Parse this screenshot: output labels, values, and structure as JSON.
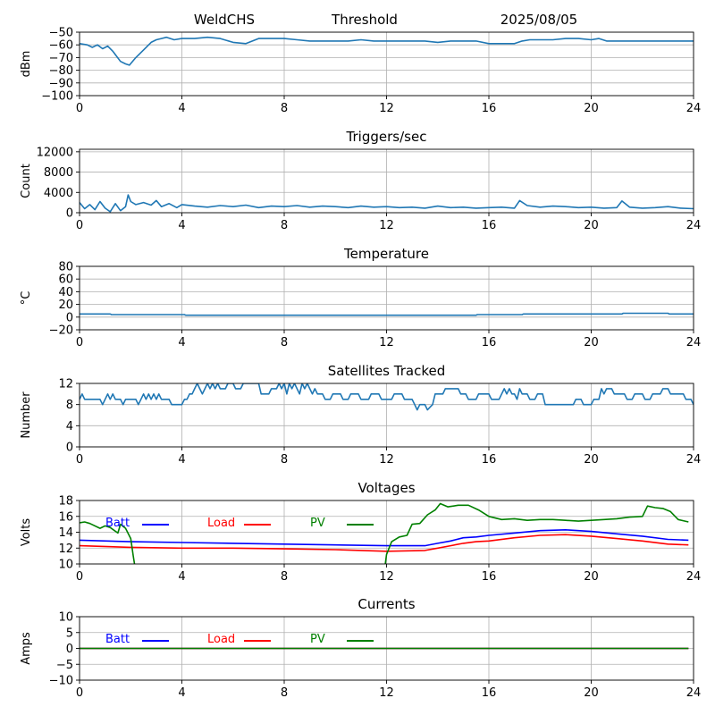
{
  "header": {
    "station": "WeldCHS",
    "mode": "Threshold",
    "date": "2025/08/05"
  },
  "colors": {
    "series_default": "#1f77b4",
    "batt": "#0000ff",
    "load": "#ff0000",
    "pv": "#008000",
    "grid": "#b0b0b0"
  },
  "chart_data": [
    {
      "id": "signal",
      "type": "line",
      "title": "",
      "ylabel": "dBm",
      "xlim": [
        0,
        24
      ],
      "ylim": [
        -100,
        -50
      ],
      "xticks": [
        0,
        4,
        8,
        12,
        16,
        20,
        24
      ],
      "yticks": [
        -100,
        -90,
        -80,
        -70,
        -60,
        -50
      ],
      "grid": true,
      "series": [
        {
          "color_key": "series_default",
          "x": [
            0,
            0.3,
            0.5,
            0.7,
            0.9,
            1.1,
            1.3,
            1.6,
            1.8,
            1.95,
            2.2,
            2.5,
            2.8,
            3.0,
            3.2,
            3.4,
            3.7,
            4.0,
            4.5,
            5.0,
            5.5,
            6.0,
            6.5,
            7.0,
            7.5,
            8.0,
            8.5,
            9.0,
            9.5,
            10.0,
            10.5,
            11.0,
            11.5,
            12.0,
            12.5,
            13.0,
            13.5,
            14.0,
            14.5,
            15.0,
            15.5,
            16.0,
            16.5,
            17.0,
            17.3,
            17.6,
            18.0,
            18.5,
            19.0,
            19.5,
            20.0,
            20.3,
            20.6,
            21.0,
            21.5,
            22.0,
            22.5,
            23.0,
            23.5,
            24.0
          ],
          "y": [
            -59,
            -60,
            -62,
            -60,
            -63,
            -61,
            -65,
            -73,
            -75,
            -76,
            -70,
            -64,
            -58,
            -56,
            -55,
            -54,
            -56,
            -55,
            -55,
            -54,
            -55,
            -58,
            -59,
            -55,
            -55,
            -55,
            -56,
            -57,
            -57,
            -57,
            -57,
            -56,
            -57,
            -57,
            -57,
            -57,
            -57,
            -58,
            -57,
            -57,
            -57,
            -59,
            -59,
            -59,
            -57,
            -56,
            -56,
            -56,
            -55,
            -55,
            -56,
            -55,
            -57,
            -57,
            -57,
            -57,
            -57,
            -57,
            -57,
            -57
          ]
        }
      ]
    },
    {
      "id": "triggers",
      "type": "line",
      "title": "Triggers/sec",
      "ylabel": "Count",
      "xlim": [
        0,
        24
      ],
      "ylim": [
        0,
        12500
      ],
      "xticks": [
        0,
        4,
        8,
        12,
        16,
        20,
        24
      ],
      "yticks": [
        0,
        4000,
        8000,
        12000
      ],
      "grid": true,
      "series": [
        {
          "color_key": "series_default",
          "x": [
            0,
            0.2,
            0.4,
            0.6,
            0.8,
            1.0,
            1.2,
            1.4,
            1.6,
            1.8,
            1.9,
            2.0,
            2.2,
            2.5,
            2.8,
            3.0,
            3.2,
            3.5,
            3.8,
            4.0,
            4.5,
            5.0,
            5.5,
            6.0,
            6.5,
            7.0,
            7.5,
            8.0,
            8.5,
            9.0,
            9.5,
            10.0,
            10.5,
            11.0,
            11.5,
            12.0,
            12.5,
            13.0,
            13.5,
            14.0,
            14.5,
            15.0,
            15.5,
            16.0,
            16.5,
            17.0,
            17.2,
            17.5,
            18.0,
            18.5,
            19.0,
            19.5,
            20.0,
            20.5,
            21.0,
            21.2,
            21.5,
            22.0,
            22.5,
            23.0,
            23.5,
            24.0
          ],
          "y": [
            2000,
            800,
            1600,
            600,
            2200,
            900,
            200,
            1800,
            400,
            1200,
            3500,
            2200,
            1600,
            2000,
            1500,
            2400,
            1200,
            1800,
            1000,
            1600,
            1300,
            1100,
            1400,
            1200,
            1500,
            1000,
            1300,
            1200,
            1400,
            1100,
            1300,
            1200,
            1000,
            1300,
            1100,
            1200,
            1000,
            1100,
            900,
            1300,
            1000,
            1100,
            900,
            1000,
            1100,
            900,
            2400,
            1400,
            1100,
            1300,
            1200,
            1000,
            1100,
            900,
            1000,
            2300,
            1100,
            900,
            1000,
            1200,
            900,
            800
          ]
        }
      ]
    },
    {
      "id": "temperature",
      "type": "line",
      "title": "Temperature",
      "ylabel": "°C",
      "xlim": [
        0,
        24
      ],
      "ylim": [
        -20,
        80
      ],
      "xticks": [
        0,
        4,
        8,
        12,
        16,
        20,
        24
      ],
      "yticks": [
        -20,
        0,
        20,
        40,
        60,
        80
      ],
      "grid": true,
      "series": [
        {
          "color_key": "series_default",
          "x": [
            0,
            1.2,
            1.25,
            4.1,
            4.15,
            15.5,
            15.55,
            17.3,
            17.35,
            21.2,
            21.25,
            23.0,
            23.05,
            24.0
          ],
          "y": [
            5,
            5,
            4,
            4,
            3,
            3,
            4,
            4,
            5,
            5,
            6,
            6,
            5,
            5
          ]
        }
      ]
    },
    {
      "id": "satellites",
      "type": "line",
      "title": "Satellites Tracked",
      "ylabel": "Number",
      "xlim": [
        0,
        24
      ],
      "ylim": [
        0,
        12
      ],
      "xticks": [
        0,
        4,
        8,
        12,
        16,
        20,
        24
      ],
      "yticks": [
        0,
        4,
        8,
        12
      ],
      "grid": true,
      "series": [
        {
          "color_key": "series_default",
          "x": [
            0,
            0.1,
            0.2,
            0.3,
            0.8,
            0.9,
            1.0,
            1.1,
            1.2,
            1.3,
            1.4,
            1.5,
            1.6,
            1.7,
            1.8,
            1.9,
            2.2,
            2.3,
            2.4,
            2.5,
            2.6,
            2.7,
            2.8,
            2.9,
            3.0,
            3.1,
            3.2,
            3.3,
            3.5,
            3.6,
            4.0,
            4.1,
            4.2,
            4.3,
            4.4,
            4.5,
            4.6,
            4.7,
            4.8,
            4.9,
            5.0,
            5.1,
            5.2,
            5.3,
            5.4,
            5.5,
            5.7,
            5.8,
            6.0,
            6.1,
            6.3,
            6.4,
            7.0,
            7.1,
            7.4,
            7.5,
            7.7,
            7.8,
            7.9,
            8.0,
            8.1,
            8.2,
            8.3,
            8.4,
            8.6,
            8.7,
            8.8,
            8.9,
            9.0,
            9.1,
            9.2,
            9.3,
            9.5,
            9.6,
            9.8,
            9.9,
            10.2,
            10.3,
            10.5,
            10.6,
            10.9,
            11.0,
            11.3,
            11.4,
            11.7,
            11.8,
            12.2,
            12.3,
            12.6,
            12.7,
            13.0,
            13.1,
            13.2,
            13.3,
            13.5,
            13.6,
            13.8,
            13.9,
            14.2,
            14.3,
            14.8,
            14.9,
            15.1,
            15.2,
            15.5,
            15.6,
            16.0,
            16.1,
            16.4,
            16.5,
            16.6,
            16.7,
            16.8,
            16.9,
            17.0,
            17.1,
            17.2,
            17.3,
            17.5,
            17.6,
            17.8,
            17.9,
            18.1,
            18.2,
            19.3,
            19.4,
            19.6,
            19.7,
            20.0,
            20.1,
            20.3,
            20.4,
            20.5,
            20.6,
            20.8,
            20.9,
            21.3,
            21.4,
            21.6,
            21.7,
            22.0,
            22.1,
            22.3,
            22.4,
            22.7,
            22.8,
            23.0,
            23.1,
            23.6,
            23.7,
            23.9,
            24.0
          ],
          "y": [
            9,
            10,
            9,
            9,
            9,
            8,
            9,
            10,
            9,
            10,
            9,
            9,
            9,
            8,
            9,
            9,
            9,
            8,
            9,
            10,
            9,
            10,
            9,
            10,
            9,
            10,
            9,
            9,
            9,
            8,
            8,
            9,
            9,
            10,
            10,
            11,
            12,
            11,
            10,
            11,
            12,
            11,
            12,
            11,
            12,
            11,
            11,
            12,
            12,
            11,
            11,
            12,
            12,
            10,
            10,
            11,
            11,
            12,
            11,
            12,
            10,
            12,
            11,
            12,
            10,
            12,
            11,
            12,
            11,
            10,
            11,
            10,
            10,
            9,
            9,
            10,
            10,
            9,
            9,
            10,
            10,
            9,
            9,
            10,
            10,
            9,
            9,
            10,
            10,
            9,
            9,
            8,
            7,
            8,
            8,
            7,
            8,
            10,
            10,
            11,
            11,
            10,
            10,
            9,
            9,
            10,
            10,
            9,
            9,
            10,
            11,
            10,
            11,
            10,
            10,
            9,
            11,
            10,
            10,
            9,
            9,
            10,
            10,
            8,
            8,
            9,
            9,
            8,
            8,
            9,
            9,
            11,
            10,
            11,
            11,
            10,
            10,
            9,
            9,
            10,
            10,
            9,
            9,
            10,
            10,
            11,
            11,
            10,
            10,
            9,
            9,
            8
          ]
        }
      ]
    },
    {
      "id": "voltages",
      "type": "line",
      "title": "Voltages",
      "ylabel": "Volts",
      "xlim": [
        0,
        24
      ],
      "ylim": [
        10,
        18
      ],
      "xticks": [
        0,
        4,
        8,
        12,
        16,
        20,
        24
      ],
      "yticks": [
        10,
        12,
        14,
        16,
        18
      ],
      "grid": true,
      "legend_placement": "top-left",
      "series": [
        {
          "name": "Batt",
          "color_key": "batt",
          "x": [
            0,
            2,
            4,
            6,
            8,
            10,
            12,
            13.5,
            14,
            14.5,
            15,
            15.5,
            16,
            17,
            18,
            19,
            20,
            21,
            22,
            23,
            23.8
          ],
          "y": [
            13.0,
            12.8,
            12.7,
            12.6,
            12.5,
            12.4,
            12.3,
            12.3,
            12.6,
            12.9,
            13.3,
            13.4,
            13.6,
            13.9,
            14.2,
            14.3,
            14.1,
            13.8,
            13.5,
            13.1,
            13.0
          ]
        },
        {
          "name": "Load",
          "color_key": "load",
          "x": [
            0,
            2,
            4,
            6,
            8,
            10,
            12,
            13.5,
            14,
            14.5,
            15,
            15.5,
            16,
            17,
            18,
            19,
            20,
            21,
            22,
            23,
            23.8
          ],
          "y": [
            12.3,
            12.1,
            12.0,
            12.0,
            11.9,
            11.8,
            11.6,
            11.7,
            12.0,
            12.3,
            12.6,
            12.8,
            12.9,
            13.3,
            13.6,
            13.7,
            13.5,
            13.2,
            12.9,
            12.5,
            12.4
          ]
        },
        {
          "name": "PV",
          "color_key": "pv",
          "x": [
            0,
            0.2,
            0.4,
            0.8,
            1.0,
            1.2,
            1.5,
            1.6,
            1.8,
            2.0,
            2.1,
            2.15
          ],
          "y": [
            15.2,
            15.3,
            15.1,
            14.5,
            14.8,
            14.6,
            13.9,
            15.0,
            14.5,
            13.2,
            11.0,
            10.0
          ]
        },
        {
          "name": "",
          "color_key": "pv",
          "x": [
            11.95,
            12.0,
            12.2,
            12.5,
            12.8,
            13.0,
            13.3,
            13.6,
            13.9,
            14.1,
            14.4,
            14.8,
            15.2,
            15.6,
            16.0,
            16.5,
            17.0,
            17.5,
            18.0,
            18.5,
            19.0,
            19.5,
            20.0,
            20.5,
            21.0,
            21.5,
            22.0,
            22.2,
            22.5,
            22.8,
            23.1,
            23.4,
            23.8
          ],
          "y": [
            10.0,
            11.2,
            12.8,
            13.4,
            13.6,
            15.0,
            15.1,
            16.2,
            16.8,
            17.6,
            17.2,
            17.4,
            17.4,
            16.8,
            16.0,
            15.6,
            15.7,
            15.5,
            15.6,
            15.6,
            15.5,
            15.4,
            15.5,
            15.6,
            15.7,
            15.9,
            16.0,
            17.3,
            17.1,
            17.0,
            16.6,
            15.6,
            15.3
          ]
        }
      ]
    },
    {
      "id": "currents",
      "type": "line",
      "title": "Currents",
      "ylabel": "Amps",
      "xlim": [
        0,
        24
      ],
      "ylim": [
        -10,
        10
      ],
      "xticks": [
        0,
        4,
        8,
        12,
        16,
        20,
        24
      ],
      "yticks": [
        -10,
        -5,
        0,
        5,
        10
      ],
      "grid": true,
      "legend_placement": "top-left",
      "series": [
        {
          "name": "Batt",
          "color_key": "batt",
          "x": [
            0,
            23.8
          ],
          "y": [
            0,
            0
          ]
        },
        {
          "name": "Load",
          "color_key": "load",
          "x": [
            0,
            23.8
          ],
          "y": [
            0,
            0
          ]
        },
        {
          "name": "PV",
          "color_key": "pv",
          "x": [
            0,
            23.8
          ],
          "y": [
            0,
            0
          ]
        }
      ]
    }
  ]
}
